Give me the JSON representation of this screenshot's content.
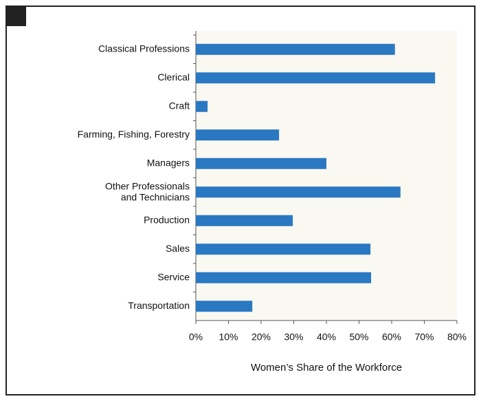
{
  "chart_data": {
    "type": "bar",
    "orientation": "horizontal",
    "x_label": "Women’s Share of the Workforce",
    "categories": [
      "Classical Professions",
      "Clerical",
      "Craft",
      "Farming, Fishing, Forestry",
      "Managers",
      "Other Professionals\nand Technicians",
      "Production",
      "Sales",
      "Service",
      "Transportation"
    ],
    "values": [
      61,
      73.3,
      3.6,
      25.5,
      40,
      62.7,
      29.7,
      53.5,
      53.7,
      17.3
    ],
    "color": "#2a78c2",
    "xlim": [
      0,
      80
    ],
    "xticks": [
      {
        "value": 0,
        "label": "0%"
      },
      {
        "value": 10,
        "label": "10%"
      },
      {
        "value": 20,
        "label": "20%"
      },
      {
        "value": 30,
        "label": "30%"
      },
      {
        "value": 40,
        "label": "40%"
      },
      {
        "value": 50,
        "label": "50%"
      },
      {
        "value": 60,
        "label": "60%"
      },
      {
        "value": 70,
        "label": "70%"
      },
      {
        "value": 80,
        "label": "80%"
      }
    ],
    "grid": false
  }
}
